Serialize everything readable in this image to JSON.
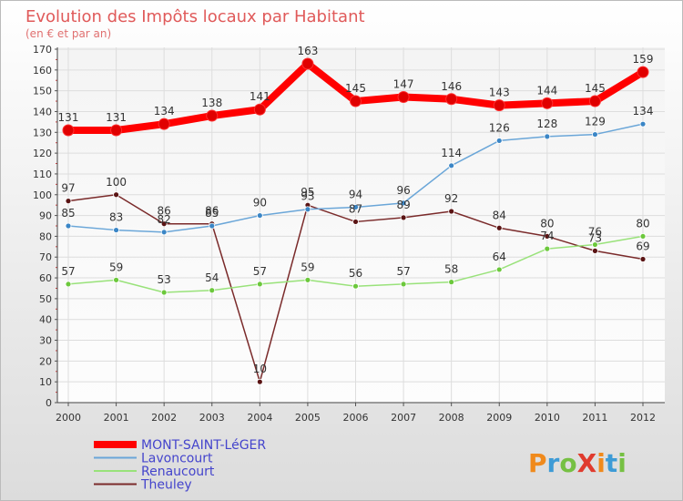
{
  "chart_data": {
    "type": "line",
    "title": "Evolution des Impôts locaux par Habitant",
    "subtitle": "(en € et par an)",
    "xlabel": "",
    "ylabel": "",
    "categories": [
      "2000",
      "2001",
      "2002",
      "2003",
      "2004",
      "2005",
      "2006",
      "2007",
      "2008",
      "2009",
      "2010",
      "2011",
      "2012"
    ],
    "ylim": [
      0,
      170
    ],
    "yticks": [
      0,
      10,
      20,
      30,
      40,
      50,
      60,
      70,
      80,
      90,
      100,
      110,
      120,
      130,
      140,
      150,
      160,
      170
    ],
    "grid": true,
    "legend_position": "bottom-left",
    "series": [
      {
        "name": "MONT-SAINT-LéGER",
        "color": "#ff0000",
        "marker_color": "#e00000",
        "values": [
          131,
          131,
          134,
          138,
          141,
          163,
          145,
          147,
          146,
          143,
          144,
          145,
          159
        ]
      },
      {
        "name": "Lavoncourt",
        "color": "#6aa6d8",
        "marker_color": "#3b86c6",
        "values": [
          85,
          83,
          82,
          85,
          90,
          93,
          94,
          96,
          114,
          126,
          128,
          129,
          134
        ]
      },
      {
        "name": "Renaucourt",
        "color": "#99e27a",
        "marker_color": "#6cc83c",
        "values": [
          57,
          59,
          53,
          54,
          57,
          59,
          56,
          57,
          58,
          64,
          74,
          76,
          80
        ]
      },
      {
        "name": "Theuley",
        "color": "#7a2a2a",
        "marker_color": "#5a1414",
        "values": [
          97,
          100,
          86,
          86,
          10,
          95,
          87,
          89,
          92,
          84,
          80,
          73,
          69
        ]
      }
    ]
  },
  "logo": {
    "text": "ProXiti",
    "colors": [
      "#f08a1c",
      "#3d9bd6",
      "#76c043",
      "#e03b2e"
    ]
  }
}
